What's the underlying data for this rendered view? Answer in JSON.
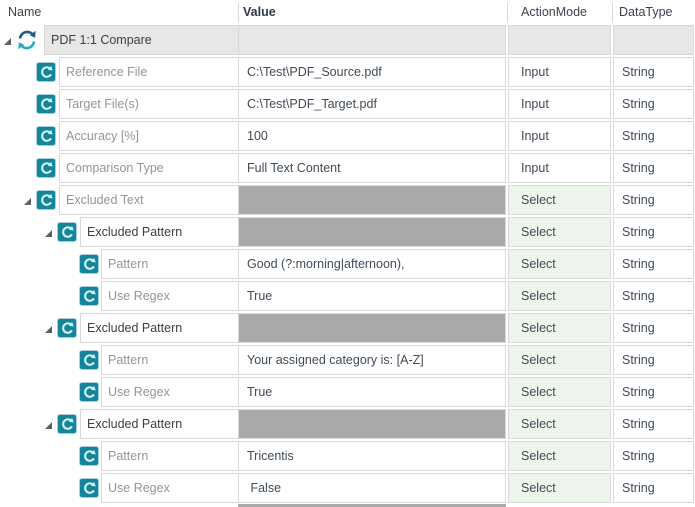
{
  "header": {
    "columns": [
      {
        "label": "Name"
      },
      {
        "label": "Value"
      },
      {
        "label": "ActionMode"
      },
      {
        "label": "DataType"
      }
    ]
  },
  "rows": [
    {
      "name": "PDF 1:1 Compare",
      "level": 0,
      "expander": true,
      "icon": "sync-arrows-icon",
      "name_style": "dark",
      "value": "",
      "value_filled": false,
      "action_mode": "",
      "data_type": "",
      "row_style": "module"
    },
    {
      "name": "Reference File",
      "level": 1,
      "expander": false,
      "icon": "circular-arrow-icon",
      "name_style": "gray",
      "value": "C:\\Test\\PDF_Source.pdf",
      "value_filled": false,
      "action_mode": "Input",
      "data_type": "String",
      "row_style": "normal"
    },
    {
      "name": "Target File(s)",
      "level": 1,
      "expander": false,
      "icon": "circular-arrow-icon",
      "name_style": "gray",
      "value": "C:\\Test\\PDF_Target.pdf",
      "value_filled": false,
      "action_mode": "Input",
      "data_type": "String",
      "row_style": "normal"
    },
    {
      "name": "Accuracy [%]",
      "level": 1,
      "expander": false,
      "icon": "circular-arrow-icon",
      "name_style": "gray",
      "value": "100",
      "value_filled": false,
      "action_mode": "Input",
      "data_type": "String",
      "row_style": "normal"
    },
    {
      "name": "Comparison Type",
      "level": 1,
      "expander": false,
      "icon": "circular-arrow-icon",
      "name_style": "gray",
      "value": "Full Text Content",
      "value_filled": false,
      "action_mode": "Input",
      "data_type": "String",
      "row_style": "normal"
    },
    {
      "name": "Excluded Text",
      "level": 1,
      "expander": true,
      "icon": "circular-arrow-icon",
      "name_style": "gray",
      "value": "",
      "value_filled": true,
      "action_mode": "Select",
      "data_type": "String",
      "row_style": "normal"
    },
    {
      "name": "Excluded Pattern",
      "level": 2,
      "expander": true,
      "icon": "circular-arrow-icon",
      "name_style": "dark",
      "value": "",
      "value_filled": true,
      "action_mode": "Select",
      "data_type": "String",
      "row_style": "normal"
    },
    {
      "name": "Pattern",
      "level": 3,
      "expander": false,
      "icon": "circular-arrow-icon",
      "name_style": "gray",
      "value": "Good (?:morning|afternoon),",
      "value_filled": false,
      "action_mode": "Select",
      "data_type": "String",
      "row_style": "normal"
    },
    {
      "name": "Use Regex",
      "level": 3,
      "expander": false,
      "icon": "circular-arrow-icon",
      "name_style": "gray",
      "value": "True",
      "value_filled": false,
      "action_mode": "Select",
      "data_type": "String",
      "row_style": "normal"
    },
    {
      "name": "Excluded Pattern",
      "level": 2,
      "expander": true,
      "icon": "circular-arrow-icon",
      "name_style": "dark",
      "value": "",
      "value_filled": true,
      "action_mode": "Select",
      "data_type": "String",
      "row_style": "normal"
    },
    {
      "name": "Pattern",
      "level": 3,
      "expander": false,
      "icon": "circular-arrow-icon",
      "name_style": "gray",
      "value": "Your assigned category is: [A-Z]",
      "value_filled": false,
      "action_mode": "Select",
      "data_type": "String",
      "row_style": "normal"
    },
    {
      "name": "Use Regex",
      "level": 3,
      "expander": false,
      "icon": "circular-arrow-icon",
      "name_style": "gray",
      "value": "True",
      "value_filled": false,
      "action_mode": "Select",
      "data_type": "String",
      "row_style": "normal"
    },
    {
      "name": "Excluded Pattern",
      "level": 2,
      "expander": true,
      "icon": "circular-arrow-icon",
      "name_style": "dark",
      "value": "",
      "value_filled": true,
      "action_mode": "Select",
      "data_type": "String",
      "row_style": "normal"
    },
    {
      "name": "Pattern",
      "level": 3,
      "expander": false,
      "icon": "circular-arrow-icon",
      "name_style": "gray",
      "value": "Tricentis",
      "value_filled": false,
      "action_mode": "Select",
      "data_type": "String",
      "row_style": "normal"
    },
    {
      "name": "Use Regex",
      "level": 3,
      "expander": false,
      "icon": "circular-arrow-icon",
      "name_style": "gray",
      "value": " False",
      "value_filled": false,
      "action_mode": "Select",
      "data_type": "String",
      "row_style": "normal"
    }
  ],
  "colors": {
    "attribute_icon_teal": "#12879c",
    "module_icon_blue": "#1f5c8b",
    "module_icon_teal": "#2da7bf",
    "select_cell_green": "#edf5ed",
    "filled_value_gray": "#a9a9a9",
    "module_row_gray": "#e7e7e7",
    "grid_border": "#d8d8d8"
  }
}
